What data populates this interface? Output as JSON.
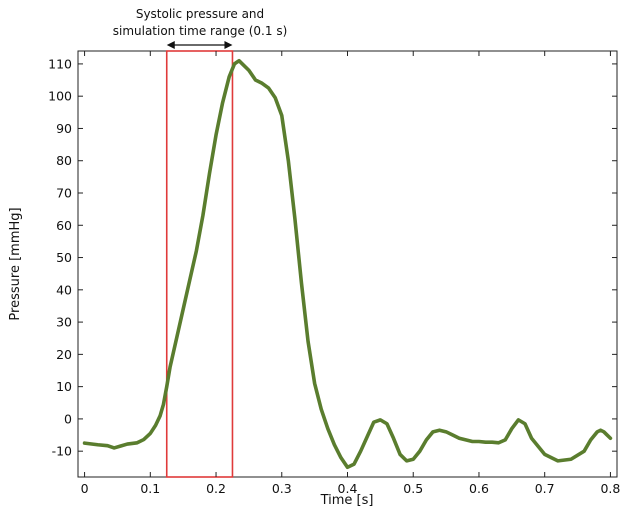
{
  "chart_data": {
    "type": "line",
    "title": "",
    "xlabel": "Time [s]",
    "ylabel": "Pressure [mmHg]",
    "xlim": [
      -0.01,
      0.81
    ],
    "ylim": [
      -18,
      114
    ],
    "x_ticks": [
      0,
      0.1,
      0.2,
      0.3,
      0.4,
      0.5,
      0.6,
      0.7,
      0.8
    ],
    "x_tick_labels": [
      "0",
      "0.1",
      "0.2",
      "0.3",
      "0.4",
      "0.5",
      "0.6",
      "0.7",
      "0.8"
    ],
    "y_ticks": [
      -10,
      0,
      10,
      20,
      30,
      40,
      50,
      60,
      70,
      80,
      90,
      100,
      110
    ],
    "y_tick_labels": [
      "-10",
      "0",
      "10",
      "20",
      "30",
      "40",
      "50",
      "60",
      "70",
      "80",
      "90",
      "100",
      "110"
    ],
    "grid": false,
    "series": [
      {
        "color": "#5a7d2e",
        "x": [
          0,
          0.02,
          0.035,
          0.045,
          0.055,
          0.065,
          0.08,
          0.09,
          0.1,
          0.108,
          0.115,
          0.12,
          0.125,
          0.13,
          0.14,
          0.15,
          0.16,
          0.17,
          0.18,
          0.19,
          0.2,
          0.21,
          0.22,
          0.228,
          0.235,
          0.24,
          0.25,
          0.26,
          0.27,
          0.28,
          0.29,
          0.3,
          0.31,
          0.32,
          0.33,
          0.34,
          0.35,
          0.36,
          0.37,
          0.38,
          0.39,
          0.4,
          0.41,
          0.42,
          0.43,
          0.44,
          0.45,
          0.46,
          0.47,
          0.48,
          0.49,
          0.5,
          0.51,
          0.52,
          0.53,
          0.54,
          0.55,
          0.56,
          0.57,
          0.58,
          0.59,
          0.6,
          0.61,
          0.62,
          0.63,
          0.64,
          0.65,
          0.66,
          0.67,
          0.68,
          0.7,
          0.72,
          0.74,
          0.76,
          0.77,
          0.78,
          0.785,
          0.79,
          0.795,
          0.8
        ],
        "y": [
          -7.5,
          -8,
          -8.3,
          -9,
          -8.4,
          -7.8,
          -7.4,
          -6.4,
          -4.5,
          -2,
          1,
          4.5,
          10,
          16,
          25,
          34,
          43,
          52,
          63,
          76,
          88,
          98,
          106,
          110,
          111,
          110,
          108,
          105,
          104,
          102.5,
          99.5,
          94,
          80,
          62,
          42,
          24,
          11,
          3,
          -3,
          -8,
          -12,
          -15,
          -14,
          -10,
          -5.5,
          -1,
          -0.3,
          -1.5,
          -6,
          -11,
          -13,
          -12.5,
          -10,
          -6.5,
          -4,
          -3.5,
          -4,
          -5,
          -6,
          -6.5,
          -7,
          -7,
          -7.2,
          -7.2,
          -7.4,
          -6.5,
          -3,
          -0.3,
          -1.5,
          -6,
          -11,
          -13,
          -12.5,
          -10,
          -6.5,
          -4,
          -3.5,
          -4,
          -5,
          -6
        ],
        "values_note_ignore": null
      }
    ],
    "annotation": {
      "text_line1": "Systolic pressure and",
      "text_line2": "simulation time range (0.1 s)",
      "x_range": [
        0.125,
        0.225
      ],
      "box_color": "#e03a3a"
    }
  }
}
